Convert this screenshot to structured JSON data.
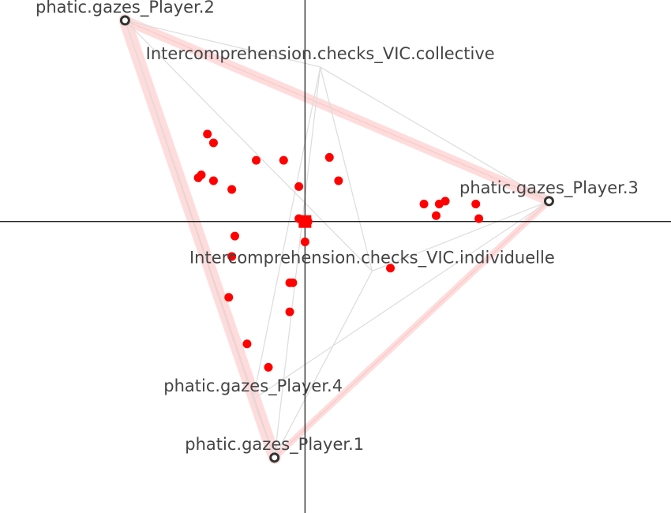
{
  "chart_data": {
    "type": "scatter",
    "title": "",
    "xlabel": "",
    "ylabel": "",
    "xlim": [
      -1.0,
      1.2
    ],
    "ylim": [
      -1.0,
      0.76
    ],
    "grid": false,
    "axes_lines_at_origin": true,
    "colors": {
      "points": "#ff0000",
      "nodes": "#333333",
      "edges": "#dcdcdc",
      "strong_edge": "#ffd6d6",
      "axis": "#222222",
      "label": "#444444"
    },
    "nodes": [
      {
        "id": "p2",
        "label": "phatic.gazes_Player.2",
        "x": -0.59,
        "y": 0.69,
        "marker": true
      },
      {
        "id": "vic_coll",
        "label": "Intercomprehension.checks_VIC.collective",
        "x": 0.05,
        "y": 0.53,
        "marker": false
      },
      {
        "id": "p3",
        "label": "phatic.gazes_Player.3",
        "x": 0.8,
        "y": 0.07,
        "marker": true
      },
      {
        "id": "vic_ind",
        "label": "Intercomprehension.checks_VIC.individuelle",
        "x": 0.22,
        "y": -0.17,
        "marker": false
      },
      {
        "id": "p4",
        "label": "phatic.gazes_Player.4",
        "x": -0.17,
        "y": -0.61,
        "marker": false
      },
      {
        "id": "p1",
        "label": "phatic.gazes_Player.1",
        "x": -0.1,
        "y": -0.81,
        "marker": true
      }
    ],
    "strong_edges": [
      {
        "from": "p2",
        "to": "p1",
        "weight": 3
      },
      {
        "from": "p2",
        "to": "p3",
        "weight": 2
      },
      {
        "from": "p3",
        "to": "p1",
        "weight": 1
      }
    ],
    "edges": [
      {
        "from": "p2",
        "to": "vic_coll"
      },
      {
        "from": "p2",
        "to": "vic_ind"
      },
      {
        "from": "p2",
        "to": "p4"
      },
      {
        "from": "vic_coll",
        "to": "p3"
      },
      {
        "from": "vic_coll",
        "to": "p1"
      },
      {
        "from": "vic_coll",
        "to": "p4"
      },
      {
        "from": "vic_coll",
        "to": "vic_ind"
      },
      {
        "from": "p3",
        "to": "p4"
      },
      {
        "from": "p3",
        "to": "vic_ind"
      },
      {
        "from": "vic_ind",
        "to": "p1"
      },
      {
        "from": "p4",
        "to": "p1"
      }
    ],
    "points": [
      {
        "x": -0.32,
        "y": 0.3
      },
      {
        "x": -0.3,
        "y": 0.27
      },
      {
        "x": -0.16,
        "y": 0.21
      },
      {
        "x": -0.07,
        "y": 0.21
      },
      {
        "x": 0.08,
        "y": 0.22
      },
      {
        "x": 0.11,
        "y": 0.14
      },
      {
        "x": -0.35,
        "y": 0.15
      },
      {
        "x": -0.34,
        "y": 0.16
      },
      {
        "x": -0.3,
        "y": 0.14
      },
      {
        "x": -0.24,
        "y": 0.11
      },
      {
        "x": -0.02,
        "y": 0.12
      },
      {
        "x": -0.02,
        "y": 0.01
      },
      {
        "x": 0.0,
        "y": 0.0
      },
      {
        "x": 0.01,
        "y": 0.0
      },
      {
        "x": 0.0,
        "y": -0.07
      },
      {
        "x": 0.39,
        "y": 0.06
      },
      {
        "x": 0.44,
        "y": 0.06
      },
      {
        "x": 0.46,
        "y": 0.07
      },
      {
        "x": 0.43,
        "y": 0.02
      },
      {
        "x": 0.56,
        "y": 0.06
      },
      {
        "x": 0.57,
        "y": 0.01
      },
      {
        "x": -0.23,
        "y": -0.05
      },
      {
        "x": -0.24,
        "y": -0.12
      },
      {
        "x": 0.28,
        "y": -0.16
      },
      {
        "x": -0.05,
        "y": -0.21
      },
      {
        "x": -0.04,
        "y": -0.21
      },
      {
        "x": -0.25,
        "y": -0.26
      },
      {
        "x": -0.05,
        "y": -0.31
      },
      {
        "x": -0.19,
        "y": -0.42
      },
      {
        "x": -0.12,
        "y": -0.5
      }
    ],
    "mean_point": {
      "x": 0.0,
      "y": 0.0,
      "marker": "square"
    }
  }
}
